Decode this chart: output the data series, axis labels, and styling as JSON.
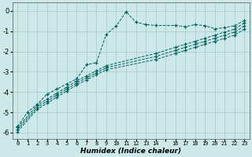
{
  "background_color": "#cce8e8",
  "grid_color": "#aacece",
  "line_color": "#006060",
  "xlabel": "Humidex (Indice chaleur)",
  "xlim": [
    -0.5,
    23.5
  ],
  "ylim": [
    -6.3,
    0.4
  ],
  "yticks": [
    0,
    -1,
    -2,
    -3,
    -4,
    -5,
    -6
  ],
  "series": [
    {
      "x": [
        0,
        1,
        2,
        3,
        4,
        5,
        6,
        7,
        8,
        9,
        10,
        11,
        12,
        13,
        14,
        16,
        17,
        18,
        19,
        20,
        21,
        22,
        23
      ],
      "y": [
        -5.7,
        -5.0,
        -4.6,
        -4.1,
        -3.85,
        -3.6,
        -3.35,
        -2.65,
        -2.55,
        -1.15,
        -0.75,
        -0.05,
        -0.55,
        -0.68,
        -0.72,
        -0.72,
        -0.78,
        -0.68,
        -0.73,
        -0.88,
        -0.83,
        -0.73,
        -0.48
      ]
    },
    {
      "x": [
        0,
        2,
        3,
        4,
        5,
        6,
        7,
        8,
        9,
        14,
        16,
        17,
        18,
        19,
        20,
        21,
        22,
        23
      ],
      "y": [
        -5.75,
        -4.65,
        -4.35,
        -4.05,
        -3.75,
        -3.45,
        -3.2,
        -2.95,
        -2.7,
        -2.1,
        -1.8,
        -1.65,
        -1.5,
        -1.35,
        -1.2,
        -1.05,
        -0.9,
        -0.6
      ]
    },
    {
      "x": [
        0,
        2,
        3,
        4,
        5,
        6,
        7,
        8,
        9,
        14,
        16,
        17,
        18,
        19,
        20,
        21,
        22,
        23
      ],
      "y": [
        -5.85,
        -4.75,
        -4.45,
        -4.15,
        -3.85,
        -3.55,
        -3.3,
        -3.05,
        -2.8,
        -2.25,
        -1.95,
        -1.8,
        -1.65,
        -1.5,
        -1.35,
        -1.2,
        -1.05,
        -0.75
      ]
    },
    {
      "x": [
        0,
        2,
        3,
        4,
        5,
        6,
        7,
        8,
        9,
        14,
        16,
        17,
        18,
        19,
        20,
        21,
        22,
        23
      ],
      "y": [
        -5.95,
        -4.85,
        -4.55,
        -4.25,
        -3.95,
        -3.65,
        -3.4,
        -3.15,
        -2.9,
        -2.4,
        -2.1,
        -1.95,
        -1.8,
        -1.65,
        -1.5,
        -1.35,
        -1.2,
        -0.9
      ]
    }
  ]
}
